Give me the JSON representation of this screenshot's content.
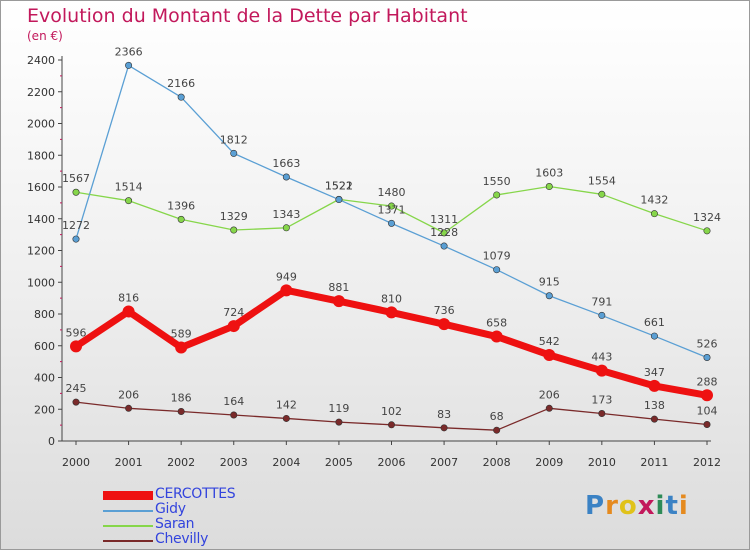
{
  "title": "Evolution du Montant de la Dette par Habitant",
  "subtitle": "(en €)",
  "logo_text": "Proxiti",
  "chart_data": {
    "type": "line",
    "title": "Evolution du Montant de la Dette par Habitant",
    "subtitle": "(en €)",
    "x": [
      "2000",
      "2001",
      "2002",
      "2003",
      "2004",
      "2005",
      "2006",
      "2007",
      "2008",
      "2009",
      "2010",
      "2011",
      "2012"
    ],
    "ylim": [
      0,
      2400
    ],
    "yticks": [
      0,
      200,
      400,
      600,
      800,
      1000,
      1200,
      1400,
      1600,
      1800,
      2000,
      2200,
      2400
    ],
    "grid": false,
    "legend_position": "bottom-left",
    "series": [
      {
        "name": "Chevilly",
        "color": "#7a2a2a",
        "values": [
          245,
          206,
          186,
          164,
          142,
          119,
          102,
          83,
          68,
          206,
          173,
          138,
          104
        ]
      },
      {
        "name": "Saran",
        "color": "#86d64a",
        "values": [
          1567,
          1514,
          1396,
          1329,
          1343,
          1522,
          1480,
          1311,
          1550,
          1603,
          1554,
          1432,
          1324
        ]
      },
      {
        "name": "Gidy",
        "color": "#5a9fd4",
        "values": [
          1272,
          2366,
          2166,
          1812,
          1663,
          1521,
          1371,
          1228,
          1079,
          915,
          791,
          661,
          526
        ]
      },
      {
        "name": "CERCOTTES",
        "color": "#ee1111",
        "values": [
          596,
          816,
          589,
          724,
          949,
          881,
          810,
          736,
          658,
          542,
          443,
          347,
          288
        ]
      }
    ]
  },
  "legend": [
    {
      "name": "CERCOTTES",
      "color": "#ee1111"
    },
    {
      "name": "Gidy",
      "color": "#5a9fd4"
    },
    {
      "name": "Saran",
      "color": "#86d64a"
    },
    {
      "name": "Chevilly",
      "color": "#7a2a2a"
    }
  ]
}
